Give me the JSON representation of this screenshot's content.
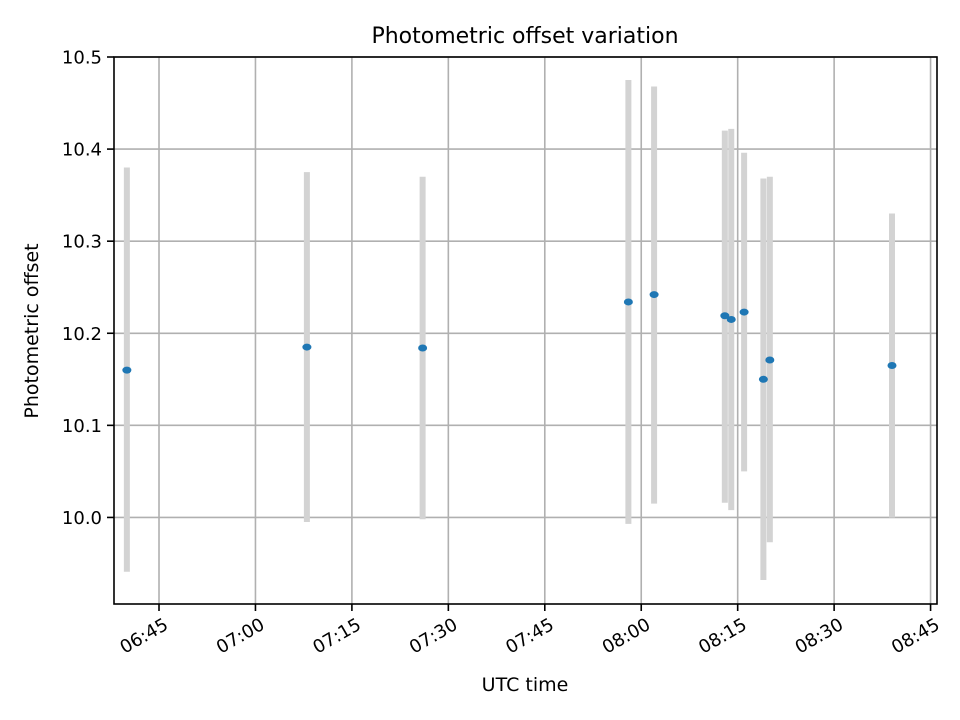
{
  "chart_data": {
    "type": "scatter",
    "title": "Photometric offset variation",
    "xlabel": "UTC time",
    "ylabel": "Photometric offset",
    "xlim": [
      "06:38",
      "08:46"
    ],
    "ylim": [
      9.906,
      10.5
    ],
    "xticks": [
      "06:45",
      "07:00",
      "07:15",
      "07:30",
      "07:45",
      "08:00",
      "08:15",
      "08:30",
      "08:45"
    ],
    "yticks": [
      10.0,
      10.1,
      10.2,
      10.3,
      10.4,
      10.5
    ],
    "grid": true,
    "colors": {
      "point": "#1f77b4",
      "error_bar": "#d3d3d3"
    },
    "points": [
      {
        "x": "06:40",
        "y": 10.16,
        "ymin": 9.941,
        "ymax": 10.38
      },
      {
        "x": "07:08",
        "y": 10.185,
        "ymin": 9.995,
        "ymax": 10.375
      },
      {
        "x": "07:26",
        "y": 10.184,
        "ymin": 9.998,
        "ymax": 10.37
      },
      {
        "x": "07:58",
        "y": 10.234,
        "ymin": 9.993,
        "ymax": 10.475
      },
      {
        "x": "08:02",
        "y": 10.242,
        "ymin": 10.015,
        "ymax": 10.468
      },
      {
        "x": "08:13",
        "y": 10.219,
        "ymin": 10.016,
        "ymax": 10.42
      },
      {
        "x": "08:14",
        "y": 10.215,
        "ymin": 10.008,
        "ymax": 10.422
      },
      {
        "x": "08:16",
        "y": 10.223,
        "ymin": 10.05,
        "ymax": 10.396
      },
      {
        "x": "08:19",
        "y": 10.15,
        "ymin": 9.932,
        "ymax": 10.368
      },
      {
        "x": "08:20",
        "y": 10.171,
        "ymin": 9.973,
        "ymax": 10.37
      },
      {
        "x": "08:39",
        "y": 10.165,
        "ymin": 10.0,
        "ymax": 10.33
      }
    ]
  }
}
